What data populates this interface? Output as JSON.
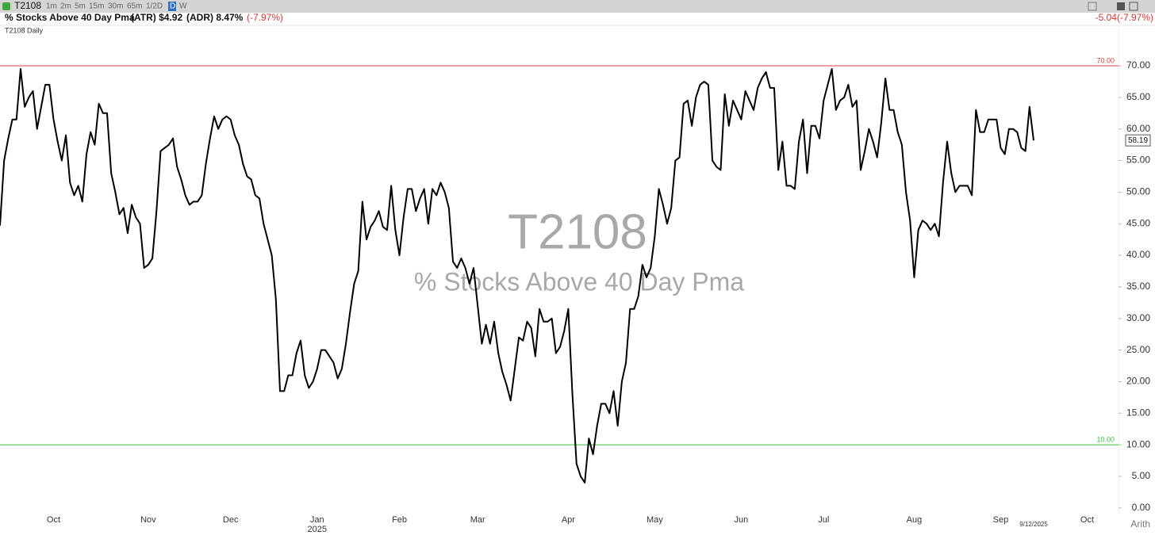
{
  "toolbar": {
    "symbol": "T2108",
    "intervals": [
      "1m",
      "2m",
      "5m",
      "15m",
      "30m",
      "65m",
      "1/2D",
      "D",
      "W"
    ],
    "selected_interval": "D"
  },
  "header": {
    "title": "% Stocks Above 40 Day Pma",
    "atr": "(ATR) $4.92",
    "adr": "(ADR) 8.47%",
    "change_pct": "(-7.97%)",
    "change": "-5.04(-7.97%)",
    "panel_label": "T2108 Daily",
    "scale_mode": "Arith"
  },
  "chart_data": {
    "type": "line",
    "watermark_title": "T2108",
    "watermark_subtitle": "% Stocks Above 40 Day Pma",
    "year_label": "2025",
    "last_date": "9/12/2025",
    "categories": [
      null,
      null,
      null,
      null,
      null,
      null,
      null,
      null,
      null,
      null,
      null,
      null,
      null,
      "Oct",
      null,
      null,
      null,
      null,
      null,
      null,
      null,
      null,
      null,
      null,
      null,
      null,
      null,
      null,
      null,
      null,
      null,
      null,
      null,
      null,
      null,
      null,
      "Nov",
      null,
      null,
      null,
      null,
      null,
      null,
      null,
      null,
      null,
      null,
      null,
      null,
      null,
      null,
      null,
      null,
      null,
      null,
      null,
      "Dec",
      null,
      null,
      null,
      null,
      null,
      null,
      null,
      null,
      null,
      null,
      null,
      null,
      null,
      null,
      null,
      null,
      null,
      null,
      null,
      null,
      "Jan",
      null,
      null,
      null,
      null,
      null,
      null,
      null,
      null,
      null,
      null,
      null,
      null,
      null,
      null,
      null,
      null,
      null,
      null,
      null,
      "Feb",
      null,
      null,
      null,
      null,
      null,
      null,
      null,
      null,
      null,
      null,
      null,
      null,
      null,
      null,
      null,
      null,
      null,
      null,
      "Mar",
      null,
      null,
      null,
      null,
      null,
      null,
      null,
      null,
      null,
      null,
      null,
      null,
      null,
      null,
      null,
      null,
      null,
      null,
      null,
      null,
      null,
      "Apr",
      null,
      null,
      null,
      null,
      null,
      null,
      null,
      null,
      null,
      null,
      null,
      null,
      null,
      null,
      null,
      null,
      null,
      null,
      null,
      null,
      "May",
      null,
      null,
      null,
      null,
      null,
      null,
      null,
      null,
      null,
      null,
      null,
      null,
      null,
      null,
      null,
      null,
      null,
      null,
      null,
      null,
      "Jun",
      null,
      null,
      null,
      null,
      null,
      null,
      null,
      null,
      null,
      null,
      null,
      null,
      null,
      null,
      null,
      null,
      null,
      null,
      null,
      "Jul",
      null,
      null,
      null,
      null,
      null,
      null,
      null,
      null,
      null,
      null,
      null,
      null,
      null,
      null,
      null,
      null,
      null,
      null,
      null,
      null,
      null,
      "Aug",
      null,
      null,
      null,
      null,
      null,
      null,
      null,
      null,
      null,
      null,
      null,
      null,
      null,
      null,
      null,
      null,
      null,
      null,
      null,
      null,
      "Sep",
      null,
      null,
      null,
      null,
      null,
      null,
      null,
      null,
      null,
      null,
      null,
      null,
      null,
      null,
      null,
      null,
      null,
      null,
      null,
      null,
      "Oct"
    ],
    "values": [
      44.7,
      55,
      58.5,
      61.5,
      61.5,
      69.5,
      63.5,
      65,
      66,
      60,
      63.5,
      67,
      67,
      61.5,
      58,
      55,
      59,
      51.5,
      49.5,
      51,
      48.5,
      56,
      59.5,
      57.5,
      64,
      62.5,
      62.5,
      53,
      50,
      46.5,
      47.5,
      43.5,
      48,
      46,
      45,
      38,
      38.5,
      39.5,
      47,
      56.5,
      57,
      57.5,
      58.5,
      54,
      52,
      49.5,
      48,
      48.5,
      48.5,
      49.5,
      54.5,
      58.5,
      62,
      60,
      61.5,
      62,
      61.5,
      59,
      57.5,
      54.5,
      52.5,
      52,
      49.5,
      49,
      45,
      42.5,
      40,
      33,
      18.5,
      18.5,
      21,
      21,
      24.5,
      26.5,
      21,
      19,
      20,
      22,
      25,
      25,
      24,
      23,
      20.5,
      22,
      26,
      31,
      35.5,
      37.5,
      48.5,
      42.5,
      44.5,
      45.5,
      47,
      44.5,
      44,
      51,
      44,
      40,
      46,
      50.5,
      50.5,
      47,
      49,
      50.5,
      45,
      50.5,
      49.5,
      51.5,
      50,
      47.5,
      39,
      38,
      39.5,
      38,
      35.5,
      38,
      32,
      26,
      29,
      26,
      29.5,
      24.5,
      21.5,
      19.5,
      17,
      22,
      27,
      26.5,
      29.5,
      28.5,
      24,
      31.5,
      29.5,
      29.5,
      30,
      24.5,
      25.5,
      28,
      31.5,
      18,
      7,
      5,
      4,
      11,
      8.5,
      13,
      16.5,
      16.5,
      15,
      18.5,
      13,
      20,
      23,
      31.5,
      31.5,
      33.5,
      38.5,
      36.5,
      38,
      43,
      50.5,
      48,
      45,
      47.5,
      55,
      55.5,
      64,
      64.5,
      60.5,
      65,
      67,
      67.5,
      67,
      55,
      54,
      53.5,
      65.5,
      60.5,
      64.5,
      63,
      61.5,
      66,
      64.5,
      63,
      66.5,
      68,
      69,
      66.5,
      66.5,
      53.5,
      58,
      51,
      51,
      50.5,
      58,
      61.5,
      53,
      60.5,
      60.5,
      58.5,
      64.5,
      67,
      69.5,
      63,
      64.5,
      65,
      67,
      63.5,
      64.5,
      53.5,
      56.5,
      60,
      58,
      55.5,
      61,
      68,
      63,
      63,
      59.5,
      57.5,
      50,
      45.5,
      36.5,
      44,
      45.5,
      45,
      44,
      45,
      43,
      51.5,
      58,
      53,
      50,
      51,
      51,
      51,
      49.5,
      63,
      59.5,
      59.5,
      61.5,
      61.5,
      61.5,
      57,
      56,
      60,
      60,
      59.5,
      57,
      56.5,
      63.5,
      58.19,
      null,
      null,
      null,
      null,
      null,
      null,
      null,
      null,
      null,
      null,
      null,
      null,
      null
    ],
    "color": "#000000",
    "ylim": [
      -0.9,
      76.4
    ],
    "yticks": [
      {
        "value": 0,
        "label": "0.00"
      },
      {
        "value": 5,
        "label": "5.00"
      },
      {
        "value": 10,
        "label": "10.00"
      },
      {
        "value": 15,
        "label": "15.00"
      },
      {
        "value": 20,
        "label": "20.00"
      },
      {
        "value": 25,
        "label": "25.00"
      },
      {
        "value": 30,
        "label": "30.00"
      },
      {
        "value": 35,
        "label": "35.00"
      },
      {
        "value": 40,
        "label": "40.00"
      },
      {
        "value": 45,
        "label": "45.00"
      },
      {
        "value": 50,
        "label": "50.00"
      },
      {
        "value": 55,
        "label": "55.00"
      },
      {
        "value": 60,
        "label": "60.00"
      },
      {
        "value": 65,
        "label": "65.00"
      },
      {
        "value": 70,
        "label": "70.00"
      }
    ],
    "reference_lines": [
      {
        "value": 70,
        "label": "70.00",
        "color": "#e0393e"
      },
      {
        "value": 10,
        "label": "10.00",
        "color": "#3cc13c"
      }
    ]
  }
}
